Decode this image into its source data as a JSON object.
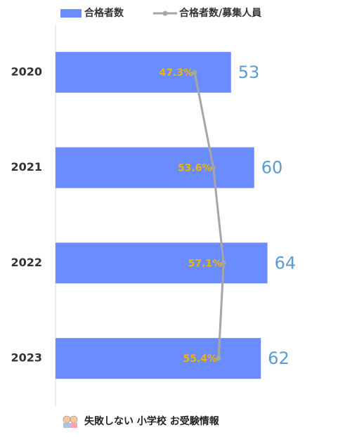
{
  "chart_data": {
    "type": "bar",
    "orientation": "horizontal",
    "categories": [
      "2020",
      "2021",
      "2022",
      "2023"
    ],
    "series": [
      {
        "name": "合格者数",
        "color": "#6b8cff",
        "label_color": "#5b9bd5",
        "values": [
          53,
          60,
          64,
          62
        ]
      },
      {
        "name": "合格者数/募集人員",
        "type": "line",
        "axis": "x2",
        "color": "#a6a6a6",
        "label_color": "#f0b400",
        "values": [
          47.3,
          53.6,
          57.1,
          55.4
        ],
        "value_labels": [
          "47.3%",
          "53.6%",
          "57.1%",
          "55.4%"
        ]
      }
    ],
    "xlim": [
      0,
      80
    ],
    "x2lim": [
      0,
      90
    ]
  },
  "footer": {
    "text": "失敗しない 小学校 お受験情報"
  }
}
